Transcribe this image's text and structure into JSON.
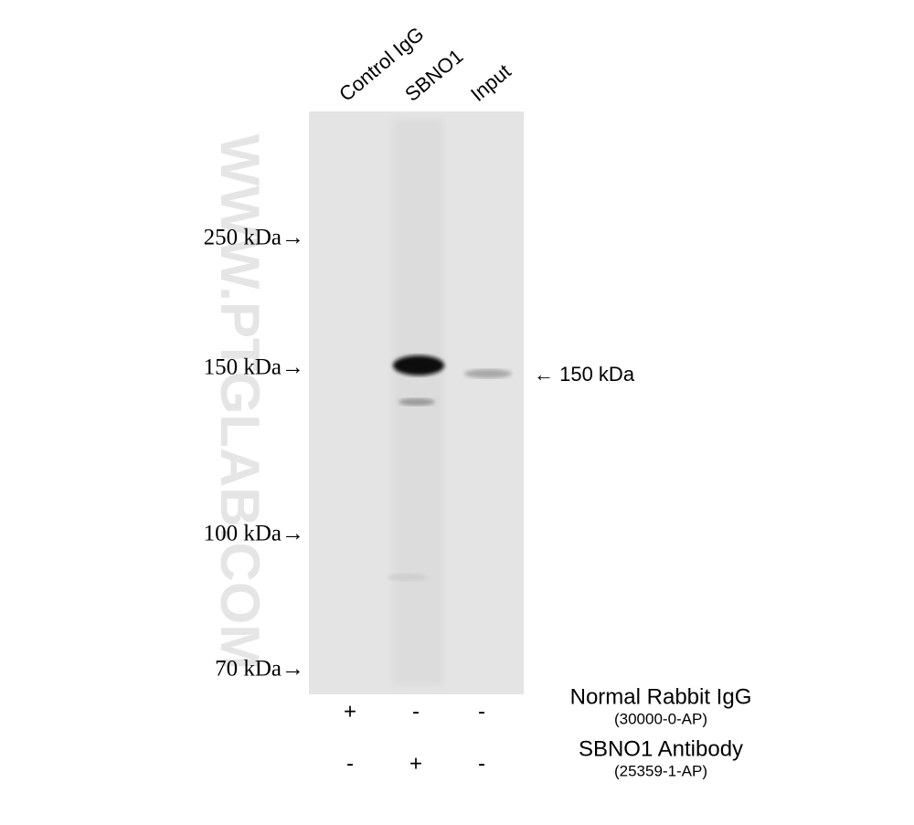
{
  "lanes": [
    "Control IgG",
    "SBNO1",
    "Input"
  ],
  "markers": [
    "250 kDa→",
    "150 kDa→",
    "100 kDa→",
    "70 kDa→"
  ],
  "band_label": "← 150 kDa",
  "watermark": "WWW.PTGLAB.COM",
  "treatments": [
    {
      "name": "Normal Rabbit IgG",
      "catalog": "(30000-0-AP)",
      "signs": [
        "+",
        "-",
        "-"
      ]
    },
    {
      "name": "SBNO1 Antibody",
      "catalog": "(25359-1-AP)",
      "signs": [
        "-",
        "+",
        "-"
      ]
    }
  ]
}
